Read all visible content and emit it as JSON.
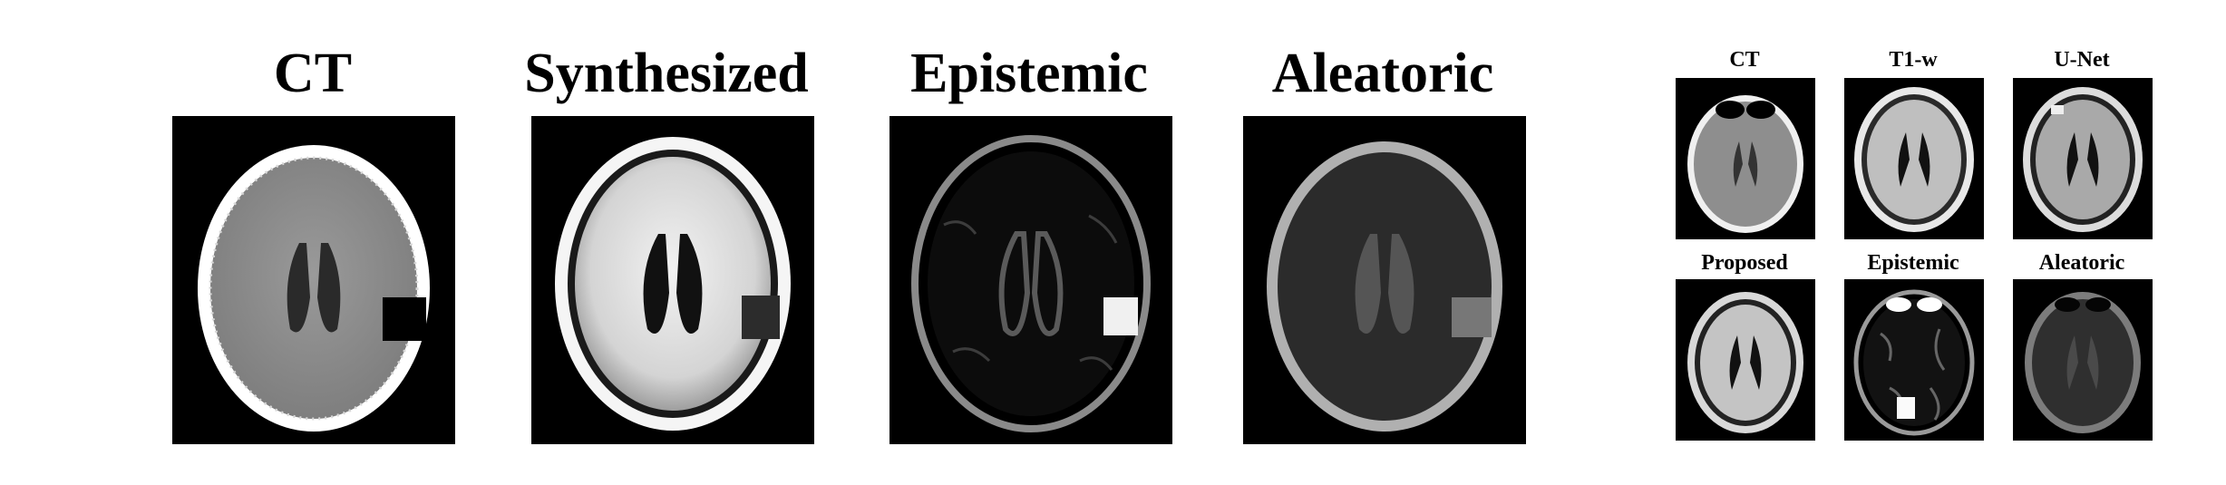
{
  "left_figure": {
    "titles": [
      "CT",
      "Synthesized",
      "Epistemic",
      "Aleatoric"
    ]
  },
  "right_figure": {
    "row1_titles": [
      "CT",
      "T1-w",
      "U-Net"
    ],
    "row2_titles": [
      "Proposed",
      "Epistemic",
      "Aleatoric"
    ]
  },
  "colors": {
    "background": "#ffffff",
    "panel_background": "#000000",
    "title_text": "#000000"
  },
  "icons": {
    "panel_image": "brain-mri-slice"
  }
}
